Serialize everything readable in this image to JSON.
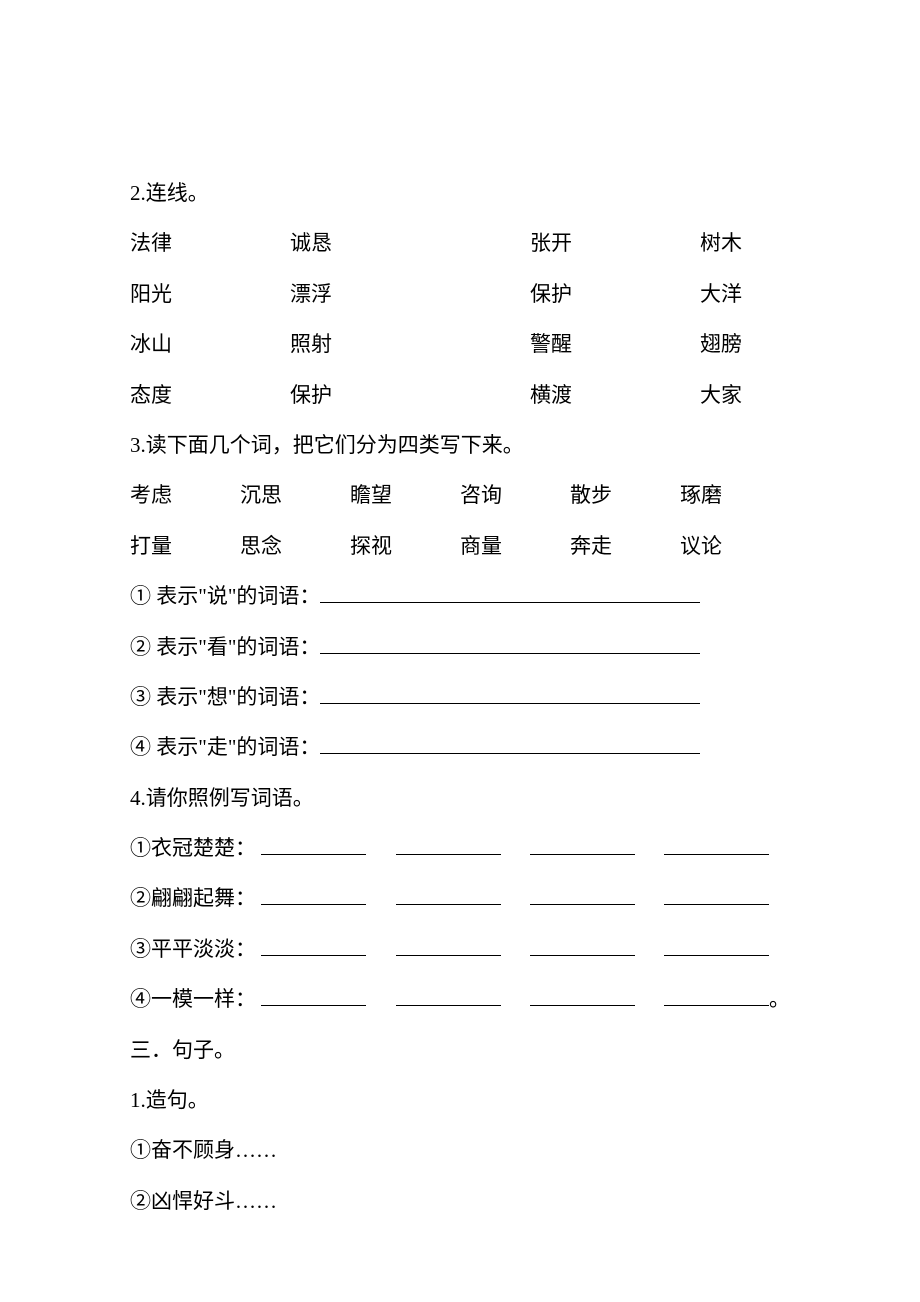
{
  "q2": {
    "title": "2.连线。",
    "rows": [
      [
        "法律",
        "诚恳",
        "张开",
        "树木"
      ],
      [
        "阳光",
        "漂浮",
        "保护",
        "大洋"
      ],
      [
        "冰山",
        "照射",
        "警醒",
        "翅膀"
      ],
      [
        "态度",
        "保护",
        "横渡",
        "大家"
      ]
    ]
  },
  "q3": {
    "title": "3.读下面几个词，把它们分为四类写下来。",
    "words_row1": [
      "考虑",
      "沉思",
      "瞻望",
      "咨询",
      "散步",
      "琢磨"
    ],
    "words_row2": [
      "打量",
      "思念",
      "探视",
      "商量",
      "奔走",
      "议论"
    ],
    "c1": "① 表示\"说\"的词语：",
    "c2": "② 表示\"看\"的词语：",
    "c3": "③ 表示\"想\"的词语：",
    "c4": "④ 表示\"走\"的词语："
  },
  "q4": {
    "title": "4.请你照例写词语。",
    "items": [
      "①衣冠楚楚：",
      "②翩翩起舞：",
      "③平平淡淡：",
      "④一模一样："
    ],
    "trail": "。"
  },
  "s3": {
    "heading": "三．句子。",
    "sub1": "1.造句。",
    "items": [
      "①奋不顾身……",
      "②凶悍好斗……"
    ]
  }
}
